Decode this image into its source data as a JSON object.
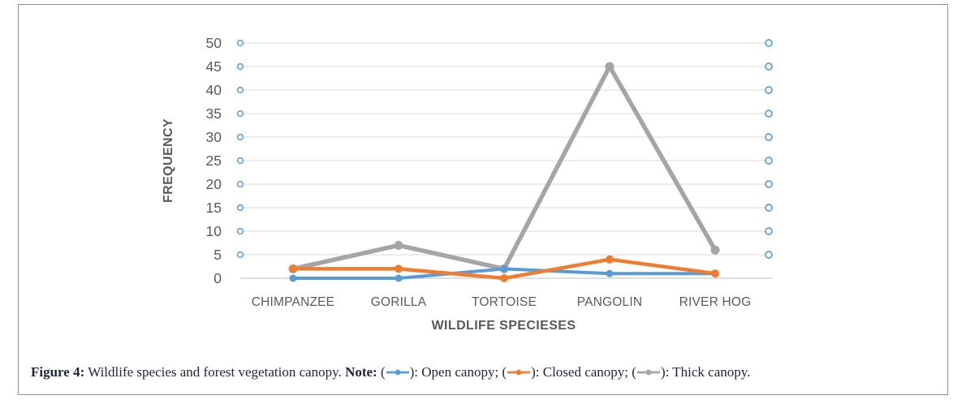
{
  "caption": {
    "figure_label": "Figure 4:",
    "text": " Wildlife species and forest vegetation canopy. ",
    "note_label": "Note:",
    "notes": [
      {
        "label": "Open canopy",
        "color": "#5B9BD5",
        "trailing": "; "
      },
      {
        "label": "Closed canopy",
        "color": "#ED7D31",
        "trailing": "; "
      },
      {
        "label": "Thick canopy",
        "color": "#A5A5A5",
        "trailing": "."
      }
    ]
  },
  "chart_data": {
    "type": "line",
    "title": "",
    "categories": [
      "CHIMPANZEE",
      "GORILLA",
      "TORTOISE",
      "PANGOLIN",
      "RIVER HOG"
    ],
    "series": [
      {
        "name": "Open canopy",
        "color": "#5B9BD5",
        "values": [
          0,
          0,
          2,
          1,
          1
        ]
      },
      {
        "name": "Closed canopy",
        "color": "#ED7D31",
        "values": [
          2,
          2,
          0,
          4,
          1
        ]
      },
      {
        "name": "Thick canopy",
        "color": "#A5A5A5",
        "values": [
          2,
          7,
          2,
          45,
          6
        ]
      }
    ],
    "xlabel": "WILDLIFE SPECIESES",
    "ylabel": "FREQUENCY",
    "ylim": [
      0,
      50
    ],
    "yticks": [
      0,
      5,
      10,
      15,
      20,
      25,
      30,
      35,
      40,
      45,
      50
    ],
    "grid": true,
    "legend_position": "caption-note",
    "axis_tick_marker": "open-circle-both-sides",
    "axis_tick_marker_color": "#5B9BD5",
    "gridline_color": "#D9D9D9",
    "axis_line_color": "#BFBFBF",
    "tick_label_color": "#595959",
    "axis_title_color": "#595959",
    "border_color": "#8F8F8F",
    "caption_color": "#20263D"
  }
}
